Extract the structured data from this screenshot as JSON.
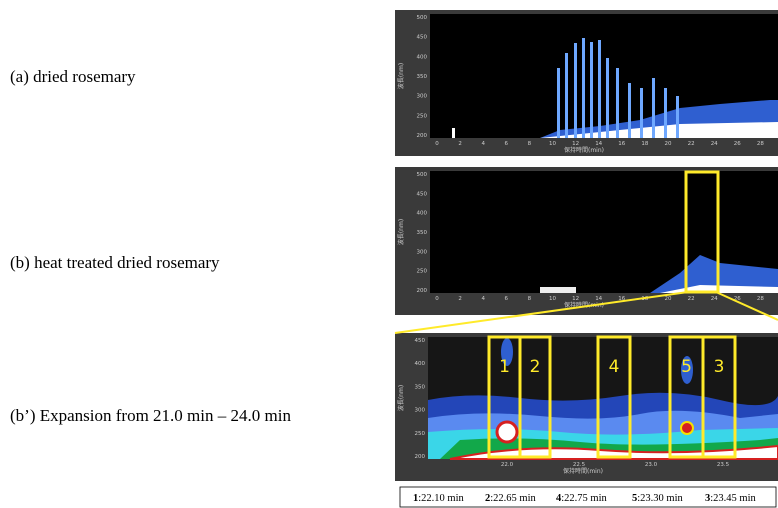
{
  "captions": [
    "(a)  dried rosemary",
    "(b)  heat treated dried rosemary",
    "(b’) Expansion from 21.0 min – 24.0 min"
  ],
  "panels": [
    {
      "y_label": "波長(nm)",
      "x_label": "保持時間(min)",
      "yticks": [
        "500",
        "450",
        "400",
        "350",
        "300",
        "250",
        "200"
      ],
      "xticks": [
        "0",
        "2",
        "4",
        "6",
        "8",
        "10",
        "12",
        "14",
        "16",
        "18",
        "20",
        "22",
        "24",
        "26",
        "28"
      ]
    },
    {
      "y_label": "波長(nm)",
      "x_label": "保持時間(min)",
      "yticks": [
        "500",
        "450",
        "400",
        "350",
        "300",
        "250",
        "200"
      ],
      "xticks": [
        "0",
        "2",
        "4",
        "6",
        "8",
        "10",
        "12",
        "14",
        "16",
        "18",
        "20",
        "22",
        "24",
        "26",
        "28"
      ]
    },
    {
      "y_label": "波長(nm)",
      "x_label": "保持時間(min)",
      "yticks": [
        "450",
        "400",
        "350",
        "300",
        "250",
        "200"
      ],
      "xticks": [
        "22.0",
        "22.5",
        "23.0",
        "23.5"
      ]
    }
  ],
  "peaks": [
    "1",
    "2",
    "4",
    "5",
    "3"
  ],
  "legend": [
    {
      "num": "1",
      "time": ":22.10 min"
    },
    {
      "num": "2",
      "time": ":22.65 min"
    },
    {
      "num": "4",
      "time": ":22.75 min"
    },
    {
      "num": "5",
      "time": ":23.30 min"
    },
    {
      "num": "3",
      "time": ":23.45 min"
    }
  ]
}
